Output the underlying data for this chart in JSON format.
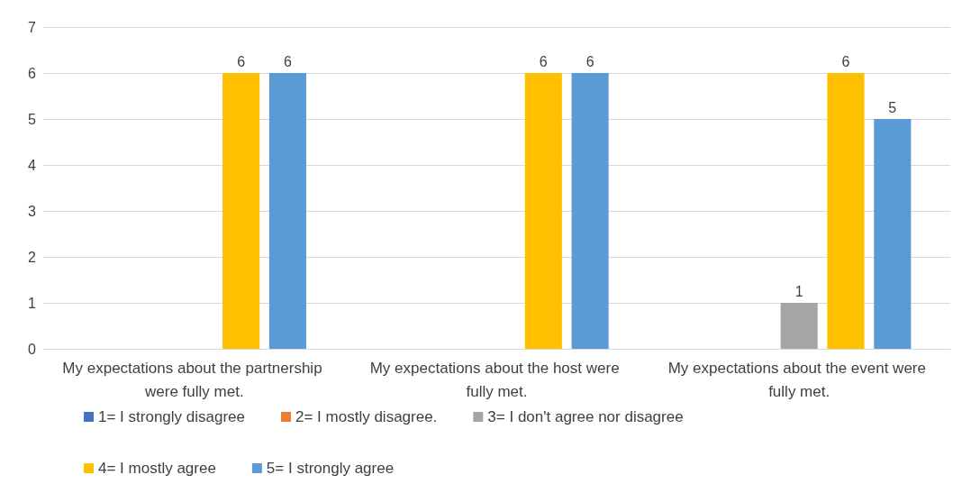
{
  "chart_data": {
    "type": "bar",
    "categories": [
      "My expectations about the partnership were fully met.",
      "My expectations about the host were fully met.",
      "My expectations about the event were fully met."
    ],
    "series": [
      {
        "name": "1= I strongly disagree",
        "color": "#4472c4",
        "values": [
          null,
          null,
          null
        ]
      },
      {
        "name": "2= I mostly disagree.",
        "color": "#ed7d31",
        "values": [
          null,
          null,
          null
        ]
      },
      {
        "name": "3= I don't agree nor disagree",
        "color": "#a5a5a5",
        "values": [
          null,
          null,
          1
        ]
      },
      {
        "name": "4= I mostly agree",
        "color": "#ffc000",
        "values": [
          6,
          6,
          6
        ]
      },
      {
        "name": "5= I strongly agree",
        "color": "#5b9bd5",
        "values": [
          6,
          6,
          5
        ]
      }
    ],
    "ylim": [
      0,
      7
    ],
    "yticks": [
      0,
      1,
      2,
      3,
      4,
      5,
      6,
      7
    ],
    "grid": "y",
    "legend": "bottom",
    "data_labels": true
  }
}
